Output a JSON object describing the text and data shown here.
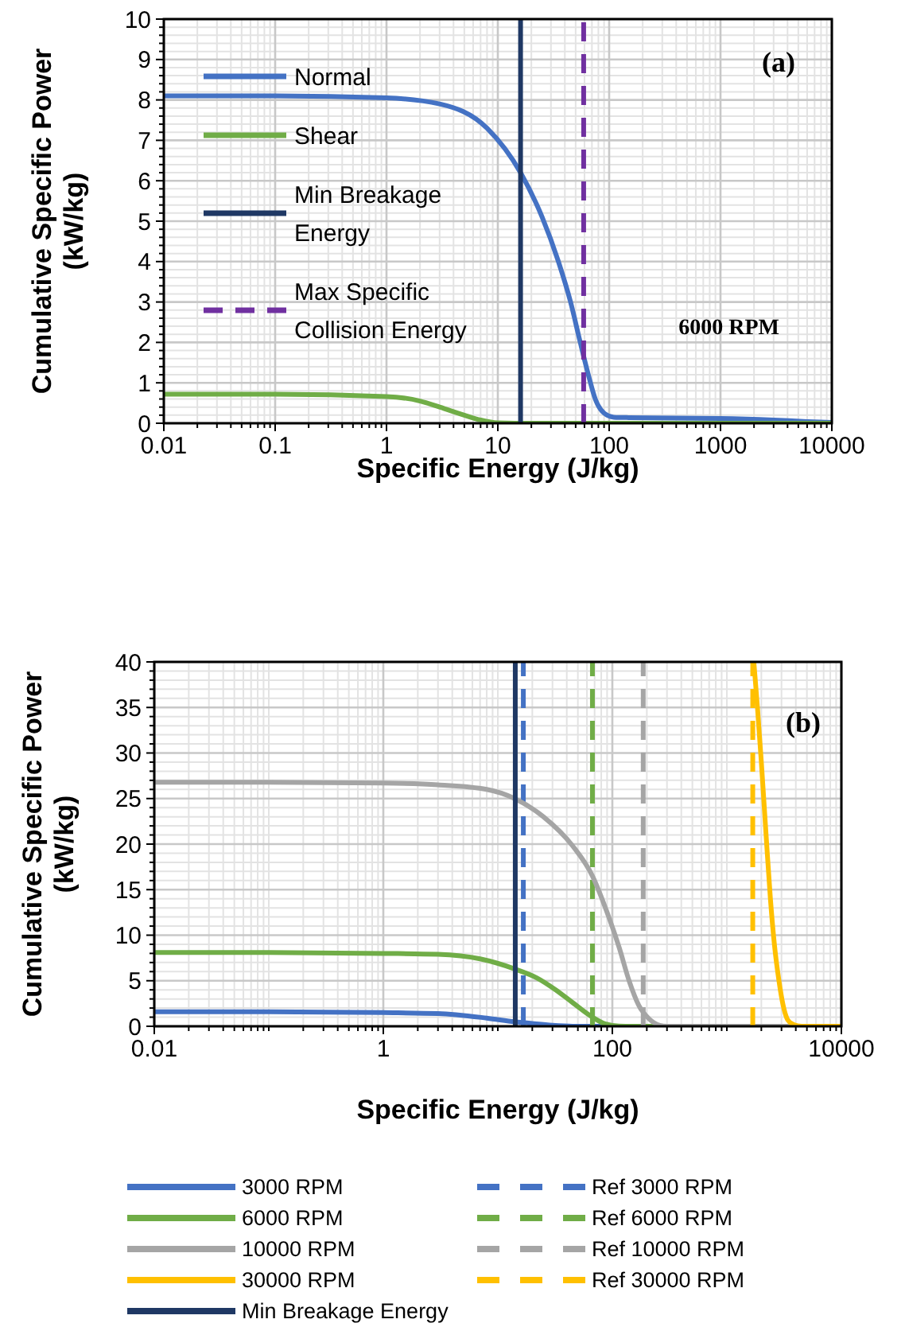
{
  "chart_data": [
    {
      "type": "line",
      "xlabel": "Specific Energy (J/kg)",
      "ylabel": "Cumulative Specific Power\n(kW/kg)",
      "log": "x",
      "xlim": [
        0.01,
        10000
      ],
      "xticks": [
        0.01,
        0.1,
        1,
        10,
        100,
        1000,
        10000
      ],
      "ylim": [
        0,
        10
      ],
      "yticks": [
        0,
        1,
        2,
        3,
        4,
        5,
        6,
        7,
        8,
        9,
        10
      ],
      "grid": true,
      "legend": "top left",
      "annotations": [
        "(a)",
        "6000 RPM"
      ],
      "series": [
        {
          "name": "Normal",
          "color": "#4472c4",
          "x": [
            0.01,
            0.1,
            1,
            3,
            8,
            16,
            25,
            35,
            45,
            55,
            65,
            75,
            90,
            110,
            150,
            1000,
            3000,
            6000,
            10000
          ],
          "values": [
            8.1,
            8.1,
            8.05,
            7.9,
            7.3,
            6.2,
            5.1,
            4,
            3,
            2,
            1.2,
            0.6,
            0.25,
            0.15,
            0.14,
            0.12,
            0.08,
            0.04,
            0.02
          ]
        },
        {
          "name": "Shear",
          "color": "#70ad47",
          "x": [
            0.01,
            0.1,
            1,
            2,
            3,
            5,
            7,
            10,
            20,
            100,
            1000,
            10000
          ],
          "values": [
            0.72,
            0.72,
            0.66,
            0.55,
            0.4,
            0.2,
            0.08,
            0.01,
            0,
            0,
            0,
            0
          ]
        },
        {
          "name": "Min Breakage Energy",
          "color": "#1f3864",
          "x": [
            16,
            16
          ],
          "values": [
            0,
            10
          ]
        },
        {
          "name": "Max Specific Collision Energy",
          "color": "#7030a0",
          "line_style": "dashed",
          "x": [
            59,
            59
          ],
          "values": [
            0,
            10
          ]
        }
      ]
    },
    {
      "type": "line",
      "xlabel": "Specific Energy (J/kg)",
      "ylabel": "Cumulative Specific Power\n(kW/kg)",
      "log": "x",
      "xlim": [
        0.01,
        10000
      ],
      "xticks": [
        0.01,
        1,
        100,
        10000
      ],
      "ylim": [
        0,
        40
      ],
      "yticks": [
        0,
        5,
        10,
        15,
        20,
        25,
        30,
        35,
        40
      ],
      "grid": true,
      "legend": "bottom",
      "annotations": [
        "(b)"
      ],
      "series": [
        {
          "name": "3000 RPM",
          "color": "#4472c4",
          "x": [
            0.01,
            0.1,
            1,
            3,
            8,
            14,
            20,
            30,
            45,
            100,
            1000,
            10000
          ],
          "values": [
            1.6,
            1.6,
            1.5,
            1.4,
            0.9,
            0.5,
            0.3,
            0.1,
            0,
            0,
            0,
            0
          ]
        },
        {
          "name": "Ref 3000 RPM",
          "color": "#4472c4",
          "line_style": "dashed",
          "x": [
            16.7,
            16.7
          ],
          "values": [
            0,
            40
          ]
        },
        {
          "name": "6000 RPM",
          "color": "#70ad47",
          "x": [
            0.01,
            0.1,
            1,
            3,
            7,
            14,
            22,
            32,
            45,
            67,
            85,
            100,
            130,
            1000,
            10000
          ],
          "values": [
            8.1,
            8.1,
            8,
            7.9,
            7.4,
            6.3,
            5.3,
            4,
            2.6,
            1,
            0.3,
            0.1,
            0,
            0,
            0
          ]
        },
        {
          "name": "Ref 6000 RPM",
          "color": "#70ad47",
          "line_style": "dashed",
          "x": [
            67,
            67
          ],
          "values": [
            0,
            40
          ]
        },
        {
          "name": "10000 RPM",
          "color": "#a5a5a5",
          "x": [
            0.01,
            0.1,
            1,
            3,
            8,
            14,
            25,
            45,
            67,
            90,
            115,
            140,
            170,
            210,
            260,
            300,
            1000,
            10000
          ],
          "values": [
            26.8,
            26.8,
            26.7,
            26.5,
            26,
            25,
            23,
            19.8,
            16.5,
            12.5,
            8.6,
            5,
            2.3,
            0.8,
            0.1,
            0,
            0,
            0
          ]
        },
        {
          "name": "Ref 10000 RPM",
          "color": "#a5a5a5",
          "line_style": "dashed",
          "x": [
            186,
            186
          ],
          "values": [
            0,
            40
          ]
        },
        {
          "name": "30000 RPM",
          "color": "#ffc000",
          "x": [
            1720,
            1850,
            2000,
            2200,
            2400,
            2600,
            2850,
            3100,
            3400,
            3800,
            4500,
            10000
          ],
          "values": [
            40,
            35,
            29,
            21,
            14,
            9,
            5,
            2.3,
            0.7,
            0.2,
            0,
            0
          ]
        },
        {
          "name": "Ref 30000 RPM",
          "color": "#ffc000",
          "line_style": "dashed",
          "x": [
            1683,
            1683
          ],
          "values": [
            0,
            40
          ]
        },
        {
          "name": "Min Breakage Energy",
          "color": "#1f3864",
          "x": [
            14.2,
            14.2
          ],
          "values": [
            0,
            40
          ]
        }
      ]
    }
  ]
}
